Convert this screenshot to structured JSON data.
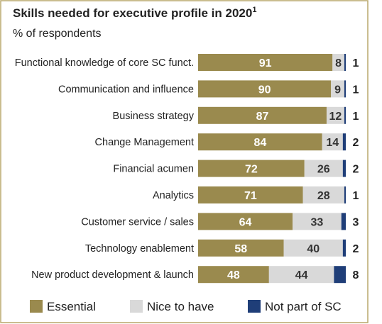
{
  "chart_data": {
    "type": "bar",
    "stacked": true,
    "orientation": "horizontal",
    "title": "Skills needed for executive profile in 2020",
    "title_superscript": "1",
    "subtitle": "% of respondents",
    "categories": [
      "Functional knowledge of core SC funct.",
      "Communication and influence",
      "Business strategy",
      "Change Management",
      "Financial acumen",
      "Analytics",
      "Customer service / sales",
      "Technology enablement",
      "New product development & launch"
    ],
    "series": [
      {
        "name": "Essential",
        "color": "#9a8a4e",
        "values": [
          91,
          90,
          87,
          84,
          72,
          71,
          64,
          58,
          48
        ]
      },
      {
        "name": "Nice to have",
        "color": "#d9d9d9",
        "values": [
          8,
          9,
          12,
          14,
          26,
          28,
          33,
          40,
          44
        ]
      },
      {
        "name": "Not part of SC",
        "color": "#1f3e78",
        "values": [
          1,
          1,
          1,
          2,
          2,
          1,
          3,
          2,
          8
        ]
      }
    ],
    "xlim": [
      0,
      100
    ],
    "legend_position": "bottom",
    "grid": false
  },
  "colors": {
    "frame": "#b9a76a",
    "text": "#222222",
    "essential_label": "#ffffff",
    "nice_label": "#333333"
  }
}
